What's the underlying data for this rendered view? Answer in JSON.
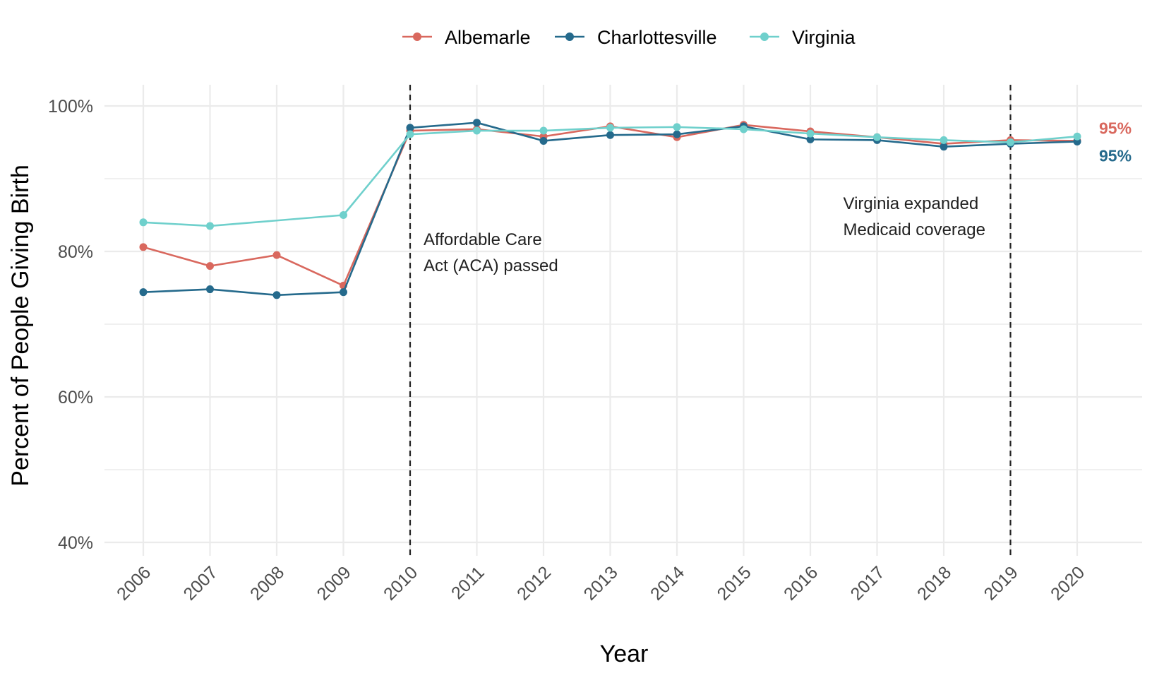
{
  "chart_data": {
    "type": "line",
    "title": "",
    "xlabel": "Year",
    "ylabel": "Percent of People Giving Birth",
    "x": [
      "2006",
      "2007",
      "2008",
      "2009",
      "2010",
      "2011",
      "2012",
      "2013",
      "2014",
      "2015",
      "2016",
      "2017",
      "2018",
      "2019",
      "2020"
    ],
    "ylim": [
      40,
      100
    ],
    "yticks": [
      {
        "value": 40,
        "label": "40%"
      },
      {
        "value": 60,
        "label": "60%"
      },
      {
        "value": 80,
        "label": "80%"
      },
      {
        "value": 100,
        "label": "100%"
      }
    ],
    "grid": true,
    "legend_position": "top",
    "series": [
      {
        "name": "Albemarle",
        "color": "#d9685e",
        "values": [
          80.6,
          78.0,
          79.5,
          75.3,
          96.6,
          96.8,
          95.8,
          97.2,
          95.7,
          97.4,
          96.5,
          95.7,
          94.8,
          95.3,
          95.2
        ],
        "end_label": "95%"
      },
      {
        "name": "Charlottesville",
        "color": "#256a8c",
        "values": [
          74.4,
          74.8,
          74.0,
          74.4,
          97.0,
          97.7,
          95.2,
          96.0,
          96.1,
          97.2,
          95.4,
          95.3,
          94.4,
          94.8,
          95.1
        ],
        "end_label": "95%"
      },
      {
        "name": "Virginia",
        "color": "#6fd0cc",
        "values": [
          84.0,
          83.5,
          null,
          85.0,
          96.1,
          96.6,
          96.6,
          97.0,
          97.1,
          96.8,
          96.2,
          95.7,
          95.3,
          95.0,
          95.8
        ],
        "end_label": null
      }
    ],
    "annotations": [
      {
        "x": "2010",
        "lines": [
          "Affordable Care",
          "Act (ACA) passed"
        ],
        "side": "right"
      },
      {
        "x": "2019",
        "lines": [
          "Virginia expanded",
          "Medicaid coverage"
        ],
        "side": "left"
      }
    ]
  }
}
